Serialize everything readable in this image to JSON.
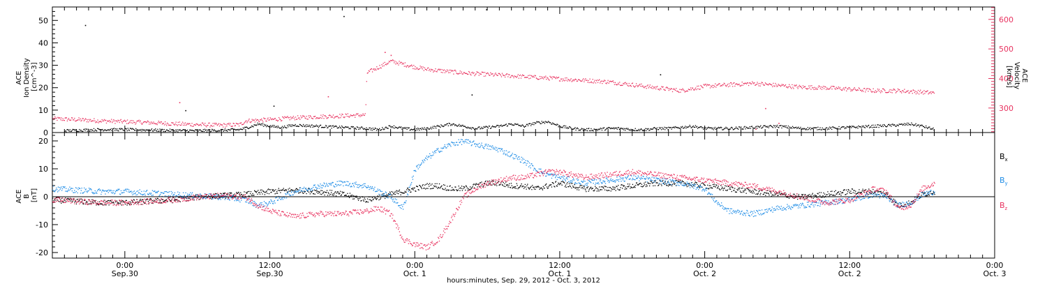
{
  "chart_data": [
    {
      "type": "scatter",
      "panel": "top",
      "ylabel_left": [
        "ACE",
        "Ion Density",
        "[cm^-3]"
      ],
      "ylabel_right": [
        "ACE",
        "Velocity",
        "[km/s]"
      ],
      "ylim_left": [
        0,
        56
      ],
      "ylim_right": [
        217,
        642
      ],
      "yticks_left": [
        0,
        10,
        20,
        30,
        40,
        50
      ],
      "yticks_right": [
        300,
        400,
        500,
        600
      ],
      "xlim_hours": [
        -6,
        72
      ],
      "series": [
        {
          "axis": "left",
          "color": "#000000",
          "x": [
            -5.0,
            -4.0,
            -2.0,
            0,
            2,
            4,
            6,
            8,
            9.5,
            10.5,
            11,
            12,
            13,
            14,
            16,
            18,
            20,
            21,
            22,
            23,
            24,
            25,
            26,
            27,
            28,
            29,
            30,
            31,
            32,
            33,
            34,
            35,
            36,
            37,
            38,
            39,
            40,
            41,
            42,
            43,
            44,
            45,
            46,
            47,
            48,
            50,
            52,
            54,
            56,
            58,
            60,
            62,
            64,
            65,
            66,
            67
          ],
          "y": [
            1.0,
            1.2,
            1.5,
            1.5,
            1.3,
            1.1,
            1.0,
            1.2,
            1.5,
            3.0,
            4.0,
            3.0,
            2.5,
            3.5,
            3.0,
            2.5,
            2.0,
            1.5,
            3.0,
            2.0,
            1.5,
            2.0,
            3.0,
            4.0,
            3.0,
            2.0,
            2.5,
            3.0,
            4.0,
            3.0,
            4.5,
            5.0,
            3.0,
            2.0,
            1.5,
            1.5,
            2.0,
            2.0,
            1.5,
            1.5,
            2.0,
            2.0,
            2.5,
            3.0,
            2.0,
            2.0,
            2.5,
            3.0,
            2.0,
            2.0,
            2.5,
            3.0,
            3.5,
            4.0,
            3.0,
            1.5
          ],
          "scattered_points": [
            {
              "x": -3.3,
              "y": 48
            },
            {
              "x": 18.1,
              "y": 52
            },
            {
              "x": 29.9,
              "y": 55
            },
            {
              "x": 44.3,
              "y": 26
            },
            {
              "x": 5.0,
              "y": 10
            },
            {
              "x": 12.3,
              "y": 12
            },
            {
              "x": 28.7,
              "y": 17
            }
          ]
        },
        {
          "axis": "right",
          "color": "#e8325f",
          "x": [
            -6,
            -4,
            -2,
            0,
            2,
            4,
            6,
            8,
            9.5,
            10,
            12,
            14,
            16,
            18,
            19.9,
            20,
            21,
            22,
            23,
            24,
            25,
            26,
            28,
            30,
            32,
            34,
            36,
            38,
            40,
            42,
            44,
            46,
            48,
            50,
            52,
            54,
            56,
            58,
            60,
            62,
            64,
            66,
            67
          ],
          "y": [
            265,
            262,
            258,
            255,
            252,
            248,
            245,
            243,
            245,
            258,
            262,
            268,
            272,
            275,
            278,
            420,
            440,
            460,
            450,
            440,
            432,
            428,
            420,
            415,
            410,
            405,
            400,
            395,
            390,
            380,
            370,
            360,
            375,
            380,
            385,
            378,
            372,
            370,
            365,
            360,
            360,
            355,
            352
          ],
          "scattered_points": [
            {
              "x": 4.5,
              "y": 320
            },
            {
              "x": 16.8,
              "y": 340
            },
            {
              "x": 21.5,
              "y": 490
            },
            {
              "x": 22.0,
              "y": 480
            },
            {
              "x": 52.2,
              "y": 230
            },
            {
              "x": 53.0,
              "y": 300
            },
            {
              "x": 54.1,
              "y": 250
            }
          ]
        }
      ]
    },
    {
      "type": "scatter",
      "panel": "bottom",
      "ylabel_left": [
        "ACE",
        "B",
        "[nT]"
      ],
      "ylim": [
        -22,
        23
      ],
      "yticks": [
        -20,
        -10,
        0,
        10,
        20
      ],
      "xlim_hours": [
        -6,
        72
      ],
      "legend_placement": "right",
      "series": [
        {
          "name": "B_x",
          "color": "#000000",
          "x": [
            -6,
            -4,
            -2,
            0,
            2,
            4,
            6,
            8,
            10,
            12,
            14,
            16,
            18,
            19,
            20,
            21,
            22,
            23,
            24,
            25,
            26,
            27,
            28,
            29,
            30,
            31,
            32,
            33,
            34,
            35,
            36,
            37,
            38,
            40,
            42,
            44,
            46,
            48,
            50,
            52,
            54,
            56,
            58,
            60,
            62,
            63,
            64,
            65,
            66,
            67
          ],
          "y": [
            -1,
            -1.5,
            -2,
            -2,
            -1.5,
            -1,
            0,
            0.5,
            1,
            2,
            2.5,
            2,
            1,
            0,
            -1,
            0,
            1,
            2,
            3,
            4,
            4,
            3,
            3,
            4,
            5,
            5,
            4,
            4,
            3,
            4,
            5,
            4,
            3,
            3,
            4,
            5,
            5,
            4,
            3,
            2,
            1,
            0,
            1,
            2,
            2,
            1,
            -3,
            -2,
            1,
            2
          ]
        },
        {
          "name": "B_y",
          "color": "#1e8ce6",
          "x": [
            -6,
            -4,
            -2,
            0,
            2,
            4,
            6,
            8,
            10,
            11,
            12,
            14,
            16,
            18,
            20,
            21,
            22,
            23,
            24,
            25,
            26,
            27,
            28,
            29,
            30,
            31,
            32,
            33,
            34,
            35,
            36,
            37,
            38,
            40,
            42,
            44,
            46,
            47,
            48,
            49,
            50,
            52,
            54,
            56,
            58,
            60,
            62,
            63,
            64,
            65,
            66,
            67
          ],
          "y": [
            3,
            2.5,
            2,
            2,
            1.5,
            1,
            0.5,
            0,
            -1,
            -3,
            -2,
            2,
            4,
            5,
            4,
            2,
            0,
            -4,
            10,
            14,
            17,
            19,
            20,
            19,
            18,
            17,
            15,
            13,
            10,
            8,
            7,
            6,
            5,
            6,
            7,
            6,
            5,
            4,
            3,
            -2,
            -5,
            -6,
            -4,
            -3,
            -2,
            -1,
            1,
            0,
            -3,
            -2,
            1,
            2
          ]
        },
        {
          "name": "B_z",
          "color": "#e8325f",
          "x": [
            -6,
            -4,
            -2,
            0,
            2,
            4,
            6,
            8,
            10,
            11,
            12,
            14,
            16,
            18,
            20,
            21,
            22,
            23,
            24,
            25,
            26,
            27,
            28,
            29,
            30,
            31,
            32,
            33,
            34,
            35,
            36,
            37,
            38,
            40,
            42,
            44,
            46,
            48,
            50,
            52,
            54,
            56,
            58,
            60,
            62,
            63,
            64,
            65,
            66,
            67
          ],
          "y": [
            -1,
            -1.5,
            -2,
            -2,
            -1.5,
            -1,
            0,
            0.5,
            0,
            -3,
            -5,
            -7,
            -6,
            -6,
            -5,
            -4,
            -6,
            -15,
            -17,
            -18,
            -15,
            -8,
            0,
            3,
            5,
            6,
            7,
            7,
            8,
            9,
            9,
            8,
            7,
            8,
            9,
            8,
            7,
            6,
            5,
            4,
            2,
            0,
            -2,
            -1,
            3,
            2,
            -4,
            -3,
            3,
            5
          ]
        }
      ]
    }
  ],
  "legend": {
    "bx": {
      "base": "B",
      "sub": "x"
    },
    "by": {
      "base": "B",
      "sub": "y"
    },
    "bz": {
      "base": "B",
      "sub": "z"
    }
  },
  "x_ticks": [
    {
      "hours": 0,
      "time": "0:00",
      "date": "Sep.30"
    },
    {
      "hours": 12,
      "time": "12:00",
      "date": "Sep.30"
    },
    {
      "hours": 24,
      "time": "0:00",
      "date": "Oct. 1"
    },
    {
      "hours": 36,
      "time": "12:00",
      "date": "Oct. 1"
    },
    {
      "hours": 48,
      "time": "0:00",
      "date": "Oct. 2"
    },
    {
      "hours": 60,
      "time": "12:00",
      "date": "Oct. 2"
    },
    {
      "hours": 72,
      "time": "0:00",
      "date": "Oct. 3"
    }
  ],
  "xlabel": "hours:minutes, Sep. 29, 2012 - Oct.  3, 2012",
  "colors": {
    "pink": "#e8325f",
    "blue": "#1e8ce6",
    "black": "#000000"
  }
}
